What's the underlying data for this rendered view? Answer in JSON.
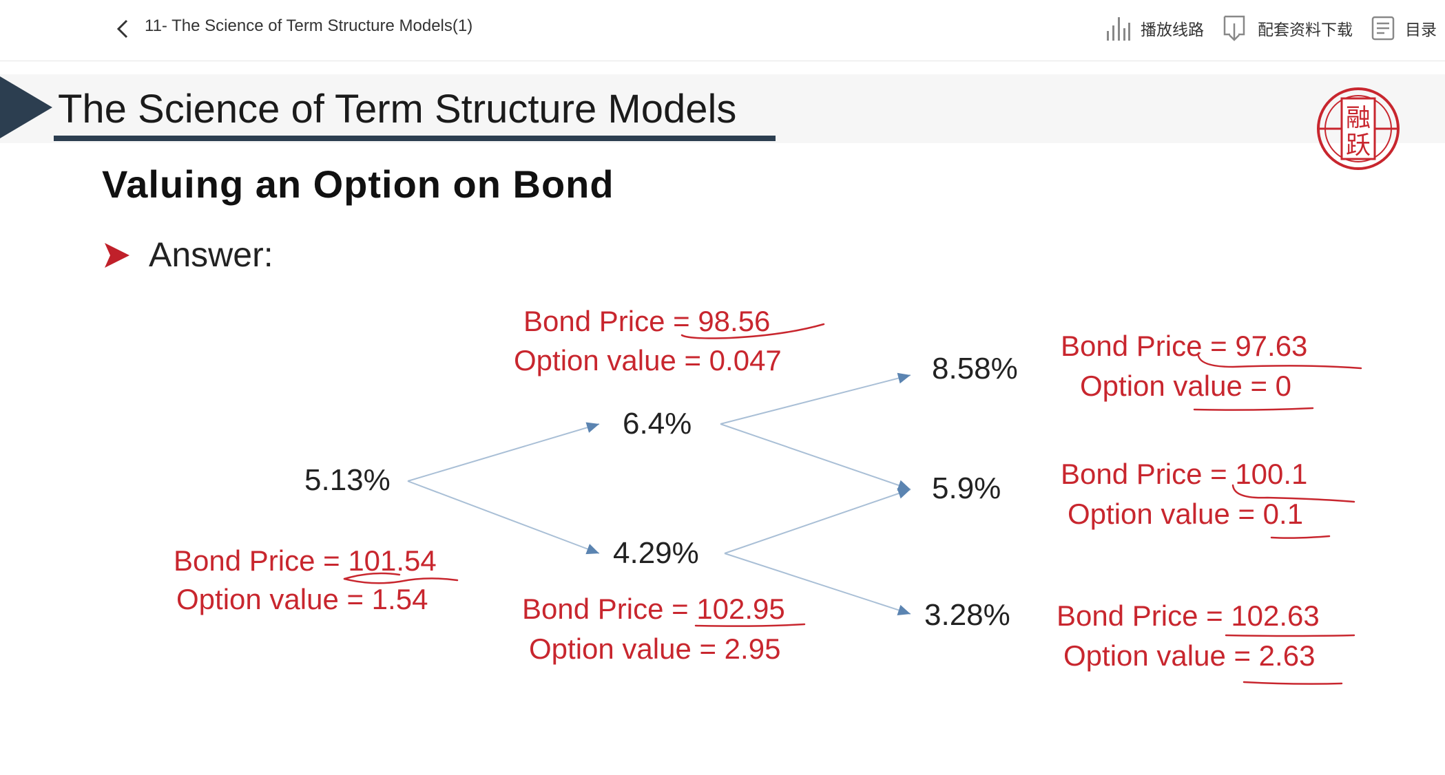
{
  "header": {
    "back_label": "<",
    "course_title": "11- The Science of Term Structure Models(1)",
    "actions": [
      {
        "label": "播放线路",
        "icon": "signal-bars-icon"
      },
      {
        "label": "配套资料下载",
        "icon": "download-icon"
      },
      {
        "label": "目录",
        "icon": "catalog-icon"
      }
    ]
  },
  "slide": {
    "title": "The Science of Term Structure Models",
    "subtitle": "Valuing an Option on Bond",
    "bullet_text": "Answer:",
    "logo_glyphs": [
      "融",
      "跃"
    ],
    "colors": {
      "title_bar": "#2c3e50",
      "annotation": "#c8262e",
      "logo": "#c8262e",
      "arrow": "#a9bfd6"
    }
  },
  "tree": {
    "rates": {
      "root": "5.13%",
      "up": "6.4%",
      "down": "4.29%",
      "uu": "8.58%",
      "ud": "5.9%",
      "dd": "3.28%"
    },
    "annotations": {
      "root": {
        "price": "Bond Price = 101.54",
        "option": "Option value = 1.54"
      },
      "up": {
        "price": "Bond Price = 98.56",
        "option": "Option value = 0.047"
      },
      "down": {
        "price": "Bond Price = 102.95",
        "option": "Option value = 2.95"
      },
      "uu": {
        "price": "Bond Price = 97.63",
        "option": "Option value = 0"
      },
      "ud": {
        "price": "Bond Price = 100.1",
        "option": "Option value = 0.1"
      },
      "dd": {
        "price": "Bond Price = 102.63",
        "option": "Option value = 2.63"
      }
    }
  }
}
